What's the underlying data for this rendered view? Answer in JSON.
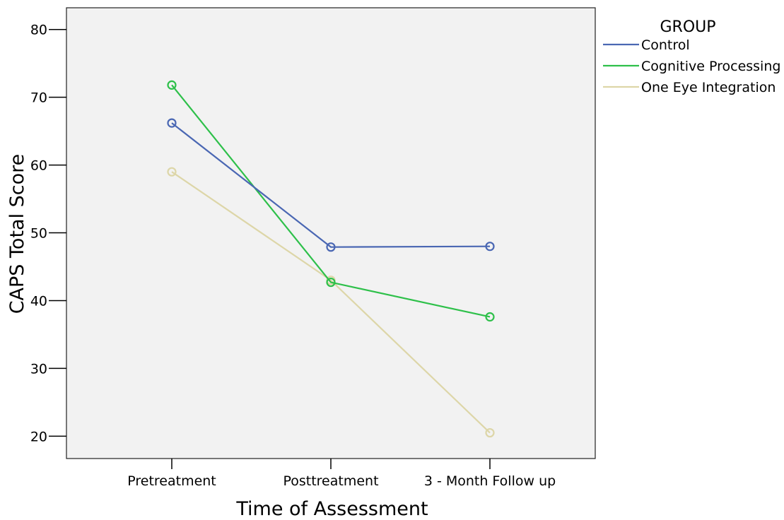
{
  "chart_data": {
    "type": "line",
    "categories": [
      "Pretreatment",
      "Posttreatment",
      "3 - Month Follow up"
    ],
    "xlabel": "Time of Assessment",
    "ylabel": "CAPS Total Score",
    "ylim": [
      16.7,
      83.2
    ],
    "yticks": [
      20,
      30,
      40,
      50,
      60,
      70,
      80
    ],
    "grid": false,
    "markers": "open-circle",
    "legend": {
      "title": "GROUP",
      "placement": "right"
    },
    "series": [
      {
        "name": "Control",
        "color": "#4a67b3",
        "values": [
          66.2,
          47.9,
          48.0
        ]
      },
      {
        "name": "Cognitive Processing",
        "color": "#2ec04a",
        "values": [
          71.8,
          42.7,
          37.6
        ]
      },
      {
        "name": "One Eye Integration",
        "color": "#ddd6a8",
        "values": [
          59.0,
          43.0,
          20.5
        ]
      }
    ]
  }
}
